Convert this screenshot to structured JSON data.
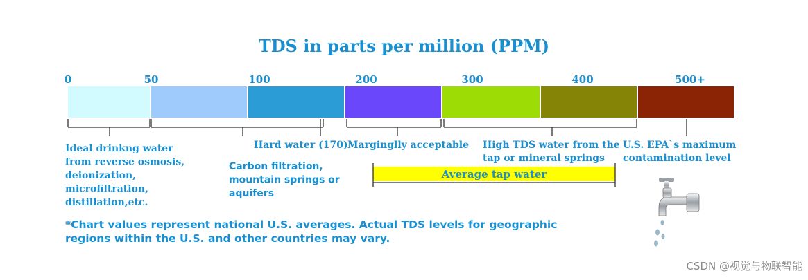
{
  "chart_data": {
    "type": "bar",
    "title": "TDS in parts per million (PPM)",
    "xlabel": "",
    "ylabel": "",
    "ticks": [
      "0",
      "50",
      "100",
      "200",
      "300",
      "400",
      "500+"
    ],
    "segments": [
      {
        "from": "0",
        "to": "50",
        "color": "#d2fbff"
      },
      {
        "from": "50",
        "to": "100",
        "color": "#9ecbfb"
      },
      {
        "from": "100",
        "to": "200",
        "color": "#2b9cd6"
      },
      {
        "from": "200",
        "to": "300",
        "color": "#6a47fb"
      },
      {
        "from": "300",
        "to": "350",
        "color": "#9ddc05"
      },
      {
        "from": "350",
        "to": "500",
        "color": "#858406"
      },
      {
        "from": "500+",
        "to": "",
        "color": "#8b2305"
      }
    ],
    "annotations": [
      {
        "lines": [
          "Ideal drinkng water",
          "from reverse osmosis,",
          "deionization,",
          "microfiltration,",
          "distillation,etc."
        ]
      },
      {
        "lines": [
          "Carbon filtration,",
          "mountain springs or",
          "aquifers"
        ]
      },
      {
        "lines": [
          "Hard water (170)"
        ]
      },
      {
        "lines": [
          "Marginglly acceptable"
        ]
      },
      {
        "lines": [
          "High TDS water from the",
          "tap or mineral springs"
        ]
      },
      {
        "lines": [
          "U.S. EPA`s maximum",
          "contamination level"
        ]
      }
    ],
    "average_band": {
      "label": "Average tap water",
      "color": "#ffff00"
    }
  },
  "footnote": "*Chart values represent national U.S. averages.   Actual TDS levels for geographic regions within the U.S. and other countries may vary.",
  "watermark": "CSDN @视觉与物联智能",
  "icon": "water-faucet-icon"
}
